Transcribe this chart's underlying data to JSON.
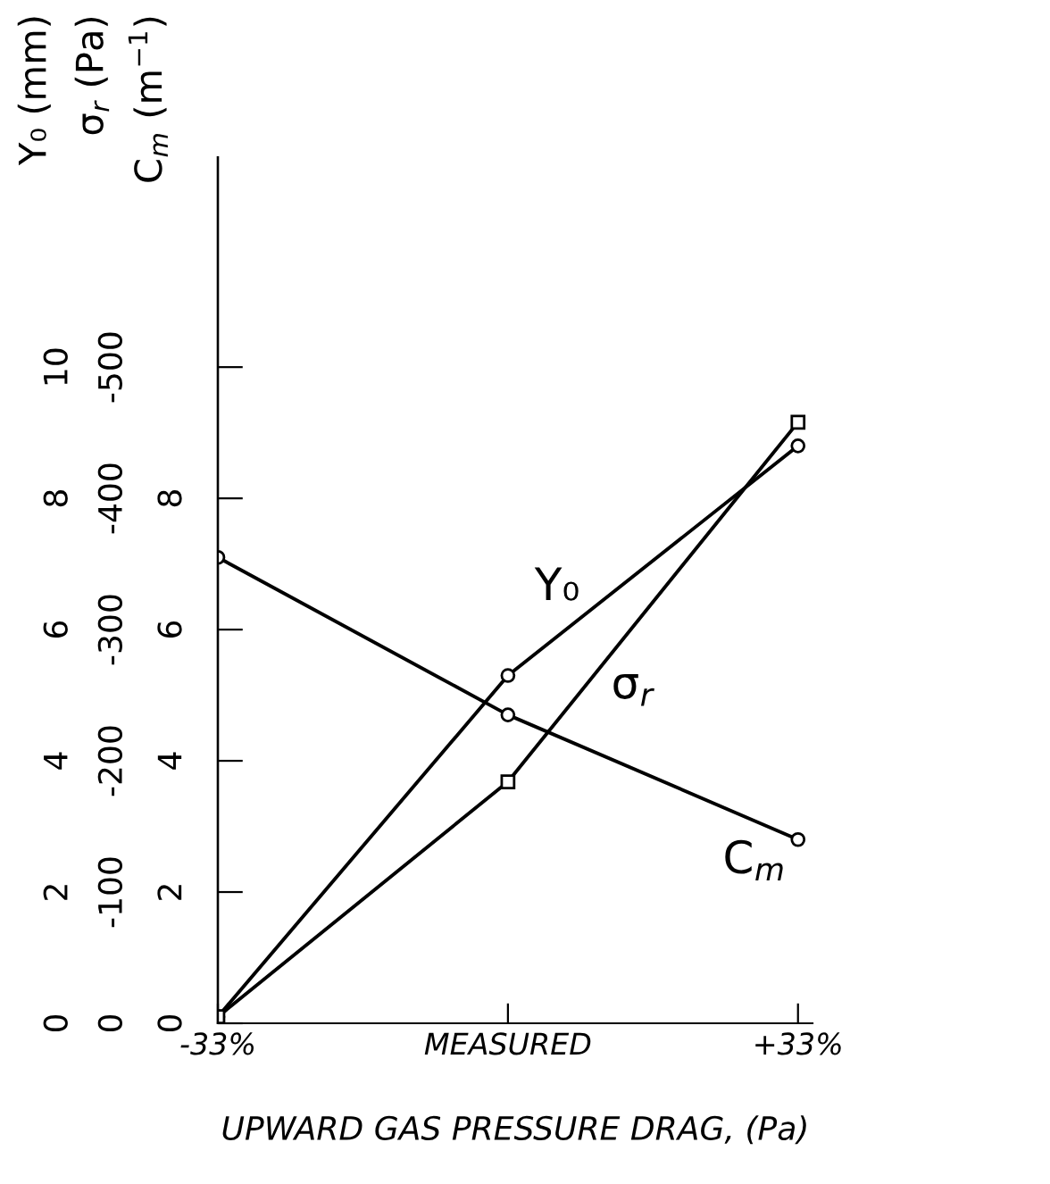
{
  "chart_data": {
    "type": "line",
    "xlabel": "UPWARD GAS PRESSURE DRAG, (Pa)",
    "ylabel": "Y₀ (mm)",
    "y2label": "σ$_{r}$ (Pa)",
    "y3label": "C$_{m}$ (m$^{−1}$)",
    "categories": [
      "-33%",
      "MEASURED",
      "+33%"
    ],
    "series": [
      {
        "name": "Y₀",
        "color": "#000000",
        "marker": "circle",
        "values": [
          0.1,
          5.3,
          8.8
        ]
      },
      {
        "name": "σ$_{r}$",
        "color": "#000000",
        "marker": "square",
        "axis": "y2",
        "values": [
          -5,
          -184,
          -458
        ]
      },
      {
        "name": "C$_{m}$",
        "color": "#000000",
        "marker": "circle",
        "axis": "y3",
        "values": [
          7.1,
          4.7,
          2.8
        ]
      }
    ],
    "ylim": [
      0,
      13.2
    ],
    "yticks": [
      0,
      2,
      4,
      6,
      8,
      10
    ],
    "y2lim": [
      0,
      -660
    ],
    "y2ticks": [
      0,
      -100,
      -200,
      -300,
      -400,
      -500
    ],
    "y3lim": [
      0,
      13.2
    ],
    "y3ticks": [
      0,
      2,
      4,
      6,
      8
    ],
    "grid": false,
    "legend": false
  }
}
